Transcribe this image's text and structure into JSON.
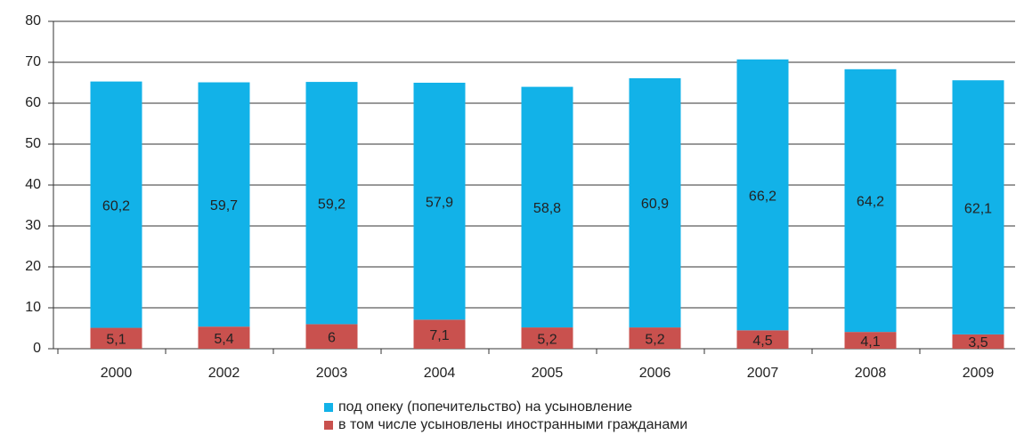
{
  "chart_data": {
    "type": "stacked_bar",
    "categories": [
      "2000",
      "2002",
      "2003",
      "2004",
      "2005",
      "2006",
      "2007",
      "2008",
      "2009"
    ],
    "series": [
      {
        "name": "в том числе усыновлены иностранными гражданами",
        "color": "#c9514e",
        "values": [
          5.1,
          5.4,
          6,
          7.1,
          5.2,
          5.2,
          4.5,
          4.1,
          3.5
        ],
        "value_labels": [
          "5,1",
          "5,4",
          "6",
          "7,1",
          "5,2",
          "5,2",
          "4,5",
          "4,1",
          "3,5"
        ]
      },
      {
        "name": "под опеку (попечительство) на усыновление",
        "color": "#12b2e8",
        "values": [
          60.2,
          59.7,
          59.2,
          57.9,
          58.8,
          60.9,
          66.2,
          64.2,
          62.1
        ],
        "value_labels": [
          "60,2",
          "59,7",
          "59,2",
          "57,9",
          "58,8",
          "60,9",
          "66,2",
          "64,2",
          "62,1"
        ]
      }
    ],
    "legend_order": [
      1,
      0
    ],
    "ylim": [
      0,
      80
    ],
    "yticks": [
      0,
      10,
      20,
      30,
      40,
      50,
      60,
      70,
      80
    ],
    "grid": true
  }
}
